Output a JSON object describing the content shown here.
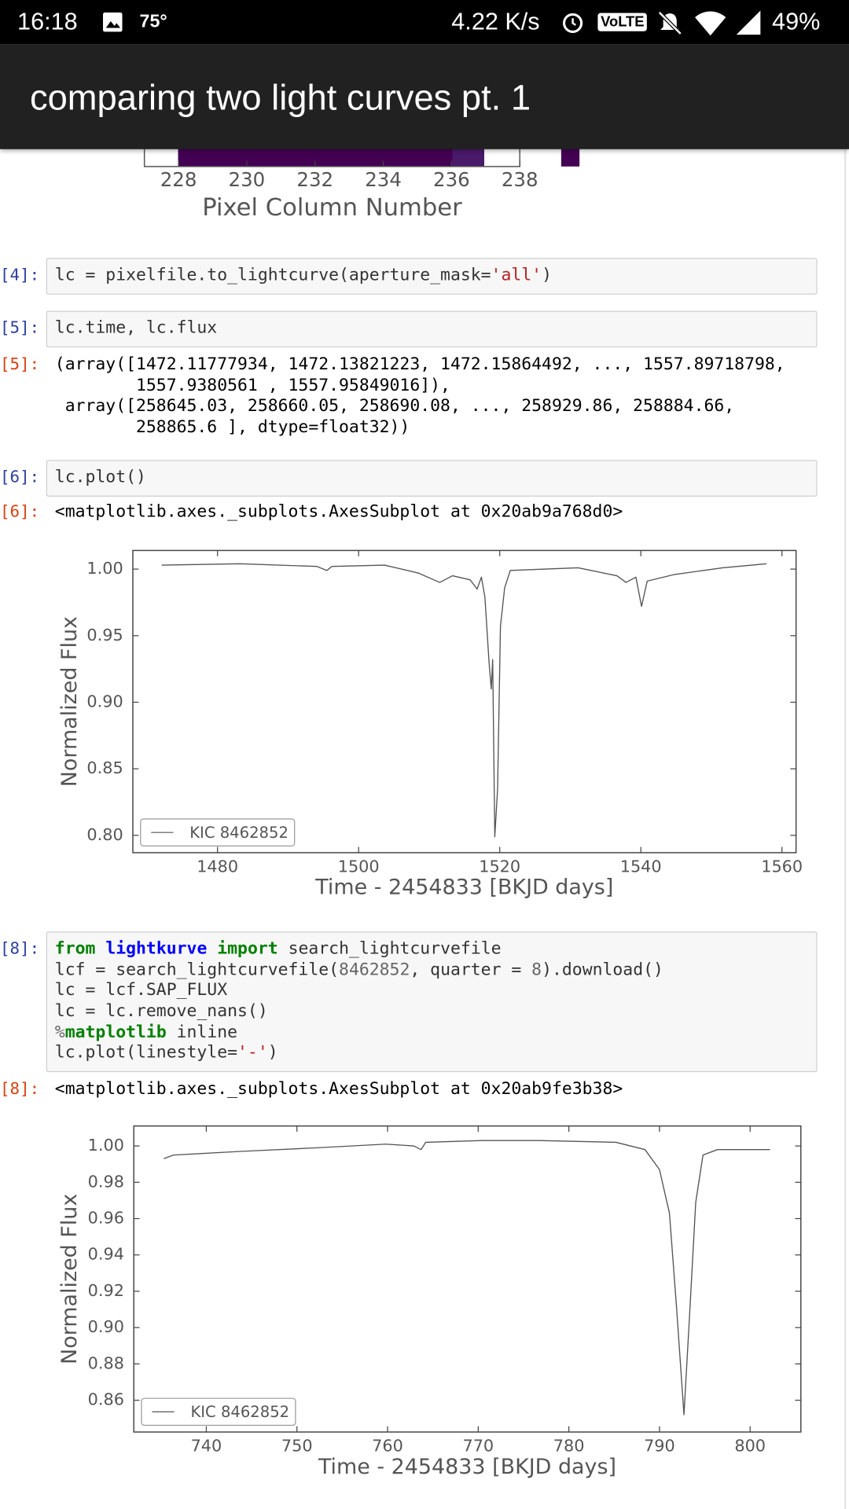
{
  "status_bar": {
    "time": "16:18",
    "temperature": "75°",
    "network_speed": "4.22 K/s",
    "volte": "VoLTE",
    "battery": "49%"
  },
  "app_bar": {
    "title": "comparing two light curves pt. 1"
  },
  "cells": [
    {
      "prompt": "[4]:",
      "code": [
        [
          {
            "text": "lc = pixelfile.to_lightcurve(aperture_mask="
          },
          {
            "text": "'all'",
            "color": "#ba2121"
          },
          {
            "text": ")"
          }
        ]
      ]
    },
    {
      "prompt": "[5]:",
      "code": [
        [
          {
            "text": "lc.time, lc.flux"
          }
        ]
      ]
    },
    {
      "prompt": "[5]:",
      "lines": [
        "(array([1472.11777934, 1472.13821223, 1472.15864492, ..., 1557.89718798,",
        "        1557.9380561 , 1557.95849016]),",
        " array([258645.03, 258660.05, 258690.08, ..., 258929.86, 258884.66,",
        "        258865.6 ], dtype=float32))"
      ]
    },
    {
      "prompt": "[6]:",
      "code": [
        [
          {
            "text": "lc.plot()"
          }
        ]
      ]
    },
    {
      "prompt": "[6]:",
      "lines": [
        "<matplotlib.axes._subplots.AxesSubplot at 0x20ab9a768d0>"
      ]
    },
    {
      "prompt": "[8]:",
      "code": [
        [
          {
            "text": "from",
            "color": "#008000",
            "bold": true
          },
          {
            "text": " "
          },
          {
            "text": "lightkurve",
            "color": "#0000ff",
            "bold": true
          },
          {
            "text": " "
          },
          {
            "text": "import",
            "color": "#008000",
            "bold": true
          },
          {
            "text": " search_lightcurvefile"
          }
        ],
        [
          {
            "text": "lcf = search_lightcurvefile("
          },
          {
            "text": "8462852",
            "color": "#666666"
          },
          {
            "text": ", quarter = "
          },
          {
            "text": "8",
            "color": "#666666"
          },
          {
            "text": ").download()"
          }
        ],
        [
          {
            "text": "lc = lcf.SAP_FLUX"
          }
        ],
        [
          {
            "text": "lc = lc.remove_nans()"
          }
        ],
        [
          {
            "text": "%",
            "color": "#666666"
          },
          {
            "text": "matplotlib",
            "color": "#008000",
            "bold": true
          },
          {
            "text": " inline"
          }
        ],
        [
          {
            "text": "lc.plot(linestyle="
          },
          {
            "text": "'-'",
            "color": "#ba2121"
          },
          {
            "text": ")"
          }
        ]
      ]
    },
    {
      "prompt": "[8]:",
      "lines": [
        "<matplotlib.axes._subplots.AxesSubplot at 0x20ab9fe3b38>"
      ]
    }
  ],
  "chart_data": [
    {
      "type": "image",
      "xlabel": "Pixel Column Number",
      "xlim": [
        227,
        238
      ],
      "xticks": [
        228,
        230,
        232,
        234,
        236,
        238
      ]
    },
    {
      "type": "line",
      "xlabel": "Time - 2454833 [BKJD days]",
      "ylabel": "Normalized Flux",
      "legend": "lower left",
      "xlim": [
        1468,
        1562
      ],
      "ylim": [
        0.787,
        1.014
      ],
      "xticks": [
        1480,
        1500,
        1520,
        1540,
        1560
      ],
      "yticks": [
        {
          "value": 0.8,
          "label": "0.80"
        },
        0.85,
        {
          "value": 0.9,
          "label": "0.90"
        },
        0.95,
        {
          "value": 1.0,
          "label": "1.00"
        }
      ],
      "x": [
        1472.1,
        1483.2,
        1494.1,
        1495.5,
        1496.2,
        1503.7,
        1508.5,
        1511.5,
        1513.3,
        1515.8,
        1516.8,
        1517.4,
        1517.9,
        1518.5,
        1518.8,
        1519.0,
        1519.3,
        1519.7,
        1520.1,
        1520.7,
        1521.5,
        1531.1,
        1536.6,
        1537.9,
        1539.3,
        1540.1,
        1540.9,
        1544.8,
        1551.6,
        1557.8
      ],
      "series": [
        {
          "name": "KIC 8462852",
          "color": "#555555",
          "values": [
            1.003,
            1.004,
            1.002,
            0.999,
            1.002,
            1.003,
            0.997,
            0.99,
            0.995,
            0.992,
            0.985,
            0.994,
            0.979,
            0.929,
            0.91,
            0.932,
            0.799,
            0.835,
            0.957,
            0.986,
            0.999,
            1.001,
            0.995,
            0.99,
            0.994,
            0.972,
            0.991,
            0.996,
            1.001,
            1.004
          ]
        }
      ]
    },
    {
      "type": "line",
      "xlabel": "Time - 2454833 [BKJD days]",
      "ylabel": "Normalized Flux",
      "legend": "lower left",
      "xlim": [
        732,
        805.6
      ],
      "ylim": [
        0.8425,
        1.011
      ],
      "xticks": [
        740,
        750,
        760,
        770,
        780,
        790,
        800
      ],
      "yticks": [
        0.86,
        0.88,
        {
          "value": 0.9,
          "label": "0.90"
        },
        0.92,
        0.94,
        0.96,
        0.98,
        {
          "value": 1.0,
          "label": "1.00"
        }
      ],
      "x": [
        735.3,
        736.4,
        743.8,
        752.3,
        759.8,
        762.9,
        763.7,
        764.2,
        770.4,
        776.7,
        785.2,
        788.4,
        790.0,
        791.1,
        791.9,
        792.7,
        793.3,
        794.0,
        794.8,
        796.4,
        802.2
      ],
      "series": [
        {
          "name": "KIC 8462852",
          "color": "#555555",
          "values": [
            0.993,
            0.995,
            0.997,
            0.999,
            1.001,
            1.0,
            0.998,
            1.002,
            1.003,
            1.003,
            1.002,
            0.998,
            0.987,
            0.963,
            0.91,
            0.852,
            0.905,
            0.969,
            0.995,
            0.998,
            0.998
          ]
        }
      ]
    }
  ]
}
